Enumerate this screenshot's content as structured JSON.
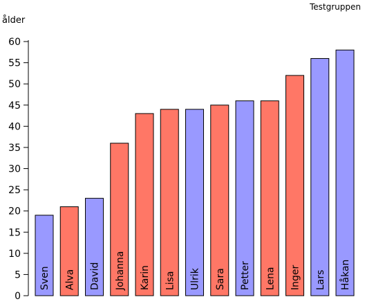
{
  "chart_data": {
    "type": "bar",
    "title": "Testgruppen",
    "ylabel": "ålder",
    "xlabel": "",
    "ylim": [
      0,
      60
    ],
    "yticks": [
      0,
      5,
      10,
      15,
      20,
      25,
      30,
      35,
      40,
      45,
      50,
      55,
      60
    ],
    "categories": [
      "Sven",
      "Alva",
      "David",
      "Johanna",
      "Karin",
      "Lisa",
      "Ulrik",
      "Sara",
      "Petter",
      "Lena",
      "Inger",
      "Lars",
      "Håkan"
    ],
    "values": [
      19,
      21,
      23,
      36,
      43,
      44,
      44,
      45,
      46,
      46,
      52,
      56,
      58
    ],
    "bar_colors": [
      "#9999ff",
      "#ff7766",
      "#9999ff",
      "#ff7766",
      "#ff7766",
      "#ff7766",
      "#9999ff",
      "#ff7766",
      "#9999ff",
      "#ff7766",
      "#ff7766",
      "#9999ff",
      "#9999ff"
    ],
    "grid": false,
    "legend": "none"
  }
}
